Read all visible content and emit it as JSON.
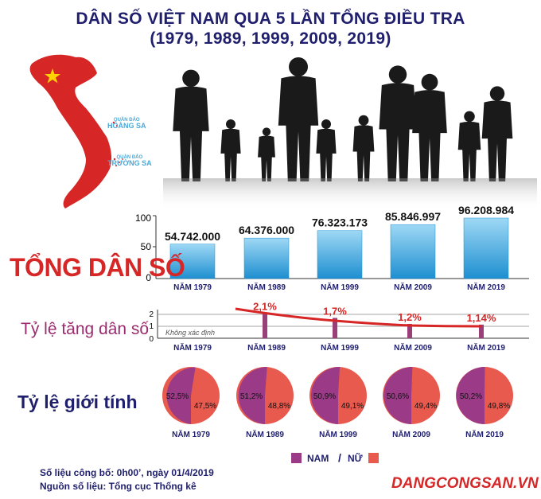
{
  "title": {
    "line1": "DÂN SỐ VIỆT NAM QUA 5 LẦN TỔNG ĐIỀU TRA",
    "line2": "(1979, 1989, 1999, 2009, 2019)"
  },
  "map": {
    "island1_small": "QUẦN ĐẢO",
    "island1_name": "HOÀNG SA",
    "island2_small": "QUẦN ĐẢO",
    "island2_name": "TRƯỜNG SA"
  },
  "sections": {
    "total": "TỔNG DÂN SỐ",
    "growth": "Tỷ lệ tăng dân số",
    "gender": "Tỷ lệ giới tính"
  },
  "chart_data": [
    {
      "type": "bar",
      "categories": [
        "NĂM 1979",
        "NĂM 1989",
        "NĂM 1999",
        "NĂM 2009",
        "NĂM 2019"
      ],
      "values": [
        54.742,
        64.376,
        76.323173,
        85.846997,
        96.208984
      ],
      "data_labels": [
        "54.742.000",
        "64.376.000",
        "76.323.173",
        "85.846.997",
        "96.208.984"
      ],
      "yticks": [
        "100",
        "50",
        "0"
      ],
      "ylim": [
        0,
        100
      ]
    },
    {
      "type": "bar",
      "categories": [
        "NĂM 1979",
        "NĂM 1989",
        "NĂM 1999",
        "NĂM 2009",
        "NĂM 2019"
      ],
      "values": [
        null,
        2.1,
        1.7,
        1.2,
        1.14
      ],
      "data_labels": [
        "",
        "2,1%",
        "1,7%",
        "1,2%",
        "1,14%"
      ],
      "annotation": "Không xác định",
      "yticks": [
        "2",
        "1",
        "0"
      ],
      "ylim": [
        0,
        2.4
      ]
    },
    {
      "type": "pie",
      "categories": [
        "NĂM 1979",
        "NĂM 1989",
        "NĂM 1999",
        "NĂM 2009",
        "NĂM 2019"
      ],
      "series": [
        {
          "name": "NAM",
          "values": [
            52.5,
            51.2,
            50.9,
            50.6,
            50.2
          ],
          "labels": [
            "52,5%",
            "51,2%",
            "50,9%",
            "50,6%",
            "50,2%"
          ]
        },
        {
          "name": "NỮ",
          "values": [
            47.5,
            48.8,
            49.1,
            49.4,
            49.8
          ],
          "labels": [
            "47,5%",
            "48,8%",
            "49,1%",
            "49,4%",
            "49,8%"
          ]
        }
      ]
    }
  ],
  "legend": {
    "male": "NAM",
    "separator": "/",
    "female": "NỮ"
  },
  "colors": {
    "title": "#1f1f6e",
    "map_red": "#d62626",
    "star": "#ffd400",
    "bar_blue": "#3aa6df",
    "growth_bar": "#9b3f7a",
    "trend": "#d62626",
    "male": "#9b3a87",
    "female": "#e8594e",
    "silhouette": "#1a1a1a"
  },
  "footer": {
    "line1": "Số liệu công bố: 0h00’, ngày 01/4/2019",
    "line2": "Nguồn số liệu: Tổng cục Thống kê",
    "brand": "DANGCONGSAN.VN"
  }
}
